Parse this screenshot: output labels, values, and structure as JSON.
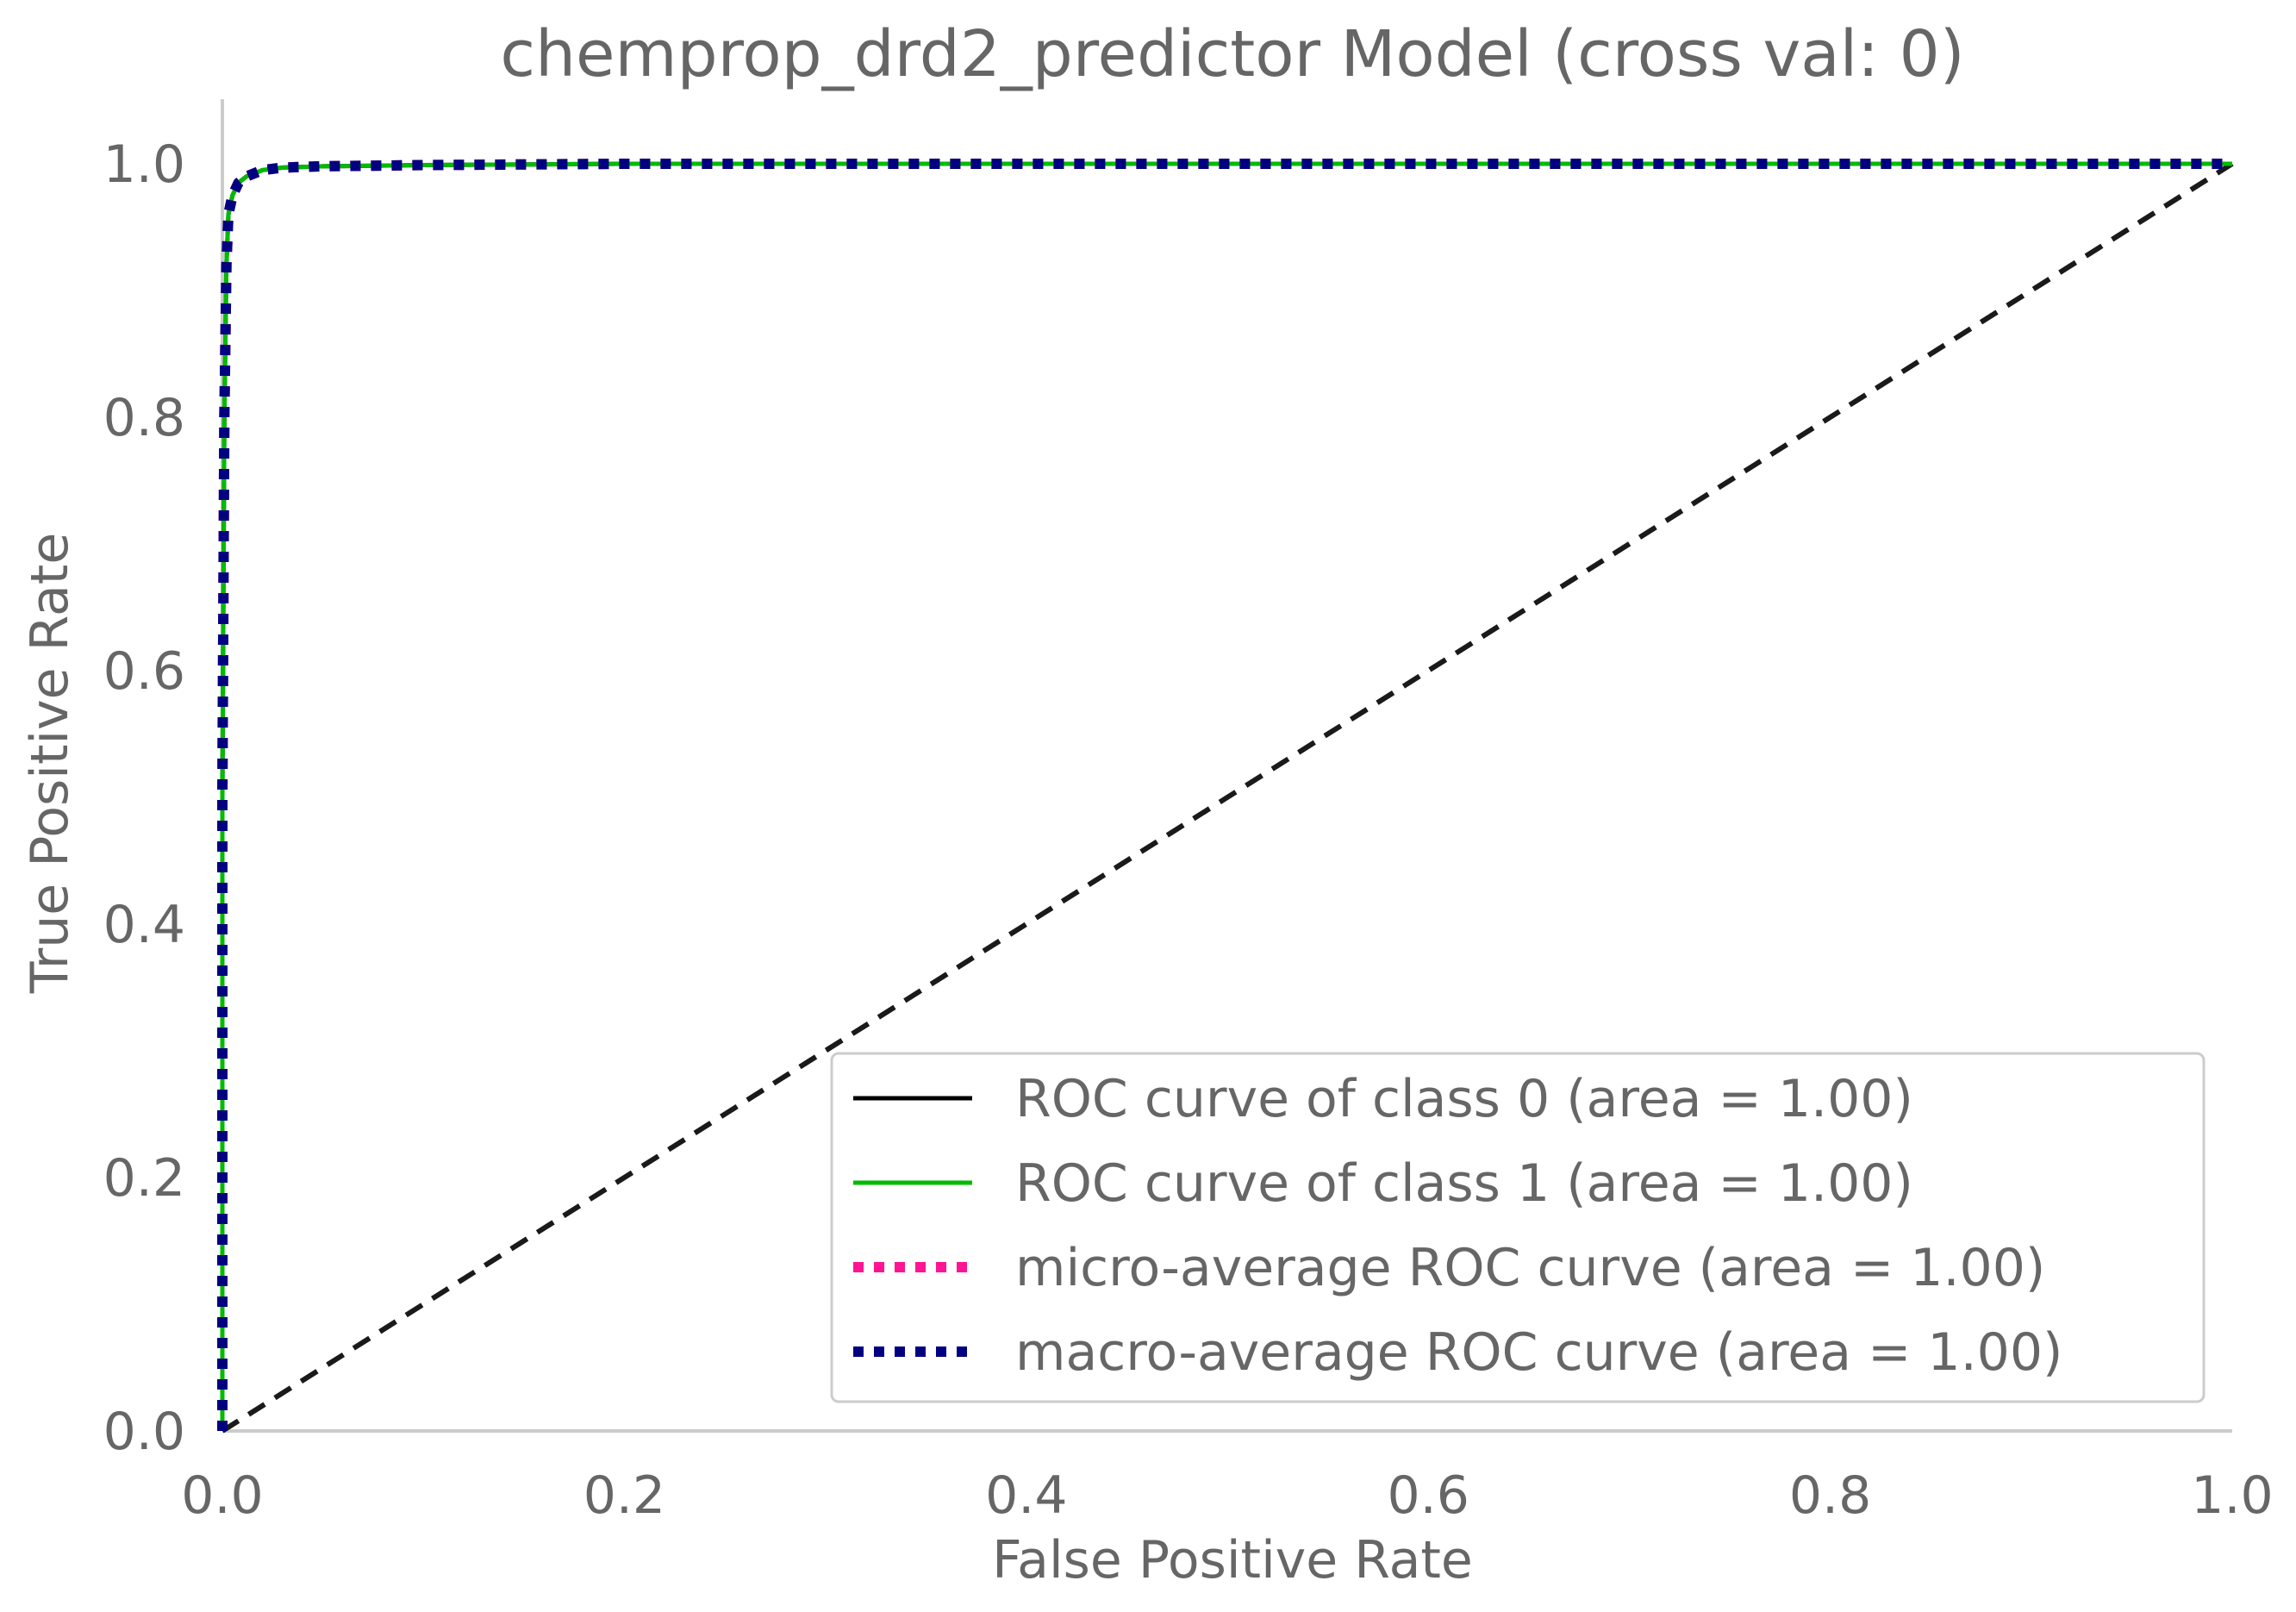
{
  "chart_data": {
    "type": "line",
    "title": "chemprop_drd2_predictor Model (cross val: 0)",
    "xlabel": "False Positive Rate",
    "ylabel": "True Positive Rate",
    "xlim": [
      0.0,
      1.0
    ],
    "ylim": [
      0.0,
      1.05
    ],
    "x_ticks": [
      "0.0",
      "0.2",
      "0.4",
      "0.6",
      "0.8",
      "1.0"
    ],
    "y_ticks": [
      "0.0",
      "0.2",
      "0.4",
      "0.6",
      "0.8",
      "1.0"
    ],
    "grid": false,
    "legend_position": "lower-right",
    "series": [
      {
        "name": "ROC curve of class 0 (area = 1.00)",
        "color": "#000000",
        "style": "solid",
        "x": [
          0.0,
          0.0,
          0.001,
          0.002,
          0.003,
          0.005,
          0.008,
          0.012,
          0.02,
          0.03,
          0.05,
          0.1,
          0.2,
          0.4,
          0.6,
          0.8,
          1.0
        ],
        "y": [
          0.0,
          0.5,
          0.8,
          0.92,
          0.96,
          0.975,
          0.985,
          0.99,
          0.995,
          0.997,
          0.998,
          0.999,
          1.0,
          1.0,
          1.0,
          1.0,
          1.0
        ]
      },
      {
        "name": "ROC curve of class 1 (area = 1.00)",
        "color": "#00bb00",
        "style": "solid",
        "x": [
          0.0,
          0.0,
          0.001,
          0.002,
          0.003,
          0.005,
          0.008,
          0.012,
          0.02,
          0.03,
          0.05,
          0.1,
          0.2,
          0.4,
          0.6,
          0.8,
          1.0
        ],
        "y": [
          0.0,
          0.5,
          0.8,
          0.92,
          0.96,
          0.975,
          0.985,
          0.99,
          0.995,
          0.997,
          0.998,
          0.999,
          1.0,
          1.0,
          1.0,
          1.0,
          1.0
        ]
      },
      {
        "name": "micro-average ROC curve (area = 1.00)",
        "color": "#ff1493",
        "style": "dotted",
        "x": [
          0.0,
          0.0,
          0.001,
          0.002,
          0.003,
          0.005,
          0.008,
          0.012,
          0.02,
          0.03,
          0.05,
          0.1,
          0.2,
          0.4,
          0.6,
          0.8,
          1.0
        ],
        "y": [
          0.0,
          0.5,
          0.8,
          0.92,
          0.96,
          0.975,
          0.985,
          0.99,
          0.995,
          0.997,
          0.998,
          0.999,
          1.0,
          1.0,
          1.0,
          1.0,
          1.0
        ]
      },
      {
        "name": "macro-average ROC curve (area = 1.00)",
        "color": "#000080",
        "style": "dotted",
        "x": [
          0.0,
          0.0,
          0.001,
          0.002,
          0.003,
          0.005,
          0.008,
          0.012,
          0.02,
          0.03,
          0.05,
          0.1,
          0.2,
          0.4,
          0.6,
          0.8,
          1.0
        ],
        "y": [
          0.0,
          0.5,
          0.8,
          0.92,
          0.96,
          0.975,
          0.985,
          0.99,
          0.995,
          0.997,
          0.998,
          0.999,
          1.0,
          1.0,
          1.0,
          1.0,
          1.0
        ]
      }
    ],
    "reference_line": {
      "color": "#1a1a1a",
      "style": "dashed",
      "x": [
        0.0,
        1.0
      ],
      "y": [
        0.0,
        1.0
      ]
    },
    "spine_color": "#cccccc"
  }
}
